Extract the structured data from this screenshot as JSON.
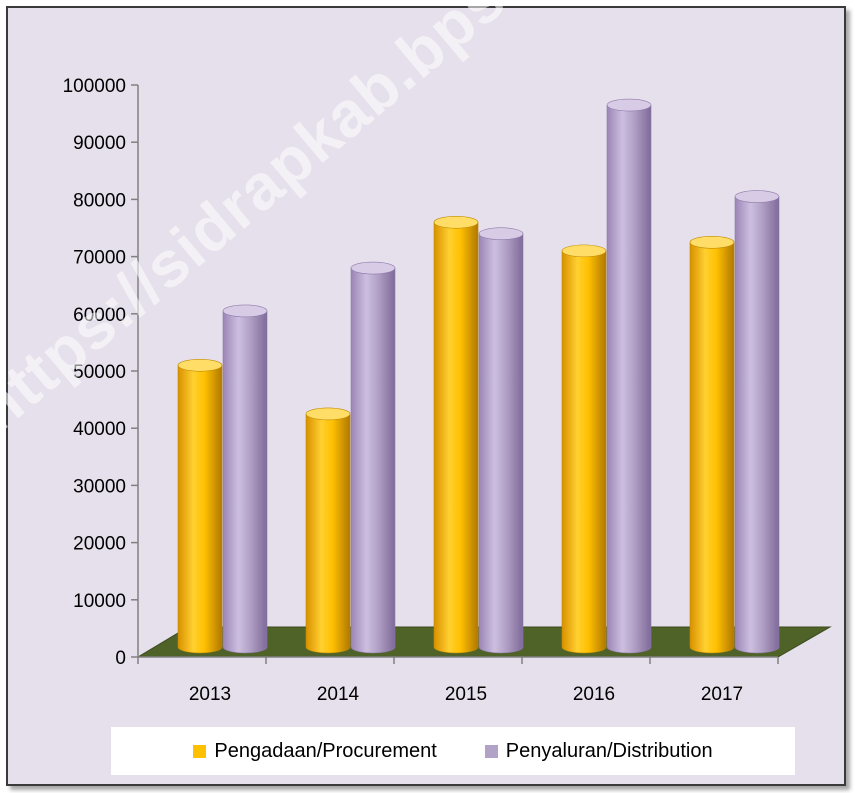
{
  "chart_data": {
    "type": "bar",
    "categories": [
      "2013",
      "2014",
      "2015",
      "2016",
      "2017"
    ],
    "series": [
      {
        "name": "Pengadaan/Procurement",
        "values": [
          51000,
          42500,
          76000,
          71000,
          72500
        ],
        "color": "#ffc000"
      },
      {
        "name": "Penyaluran/Distribution",
        "values": [
          60500,
          68000,
          74000,
          96500,
          80500
        ],
        "color": "#b3a2c7"
      }
    ],
    "ylim": [
      0,
      100000
    ],
    "yticks": [
      "0",
      "10000",
      "20000",
      "30000",
      "40000",
      "50000",
      "60000",
      "70000",
      "80000",
      "90000",
      "100000"
    ],
    "grid": false,
    "legend_position": "bottom",
    "bar_shape": "cylinder",
    "floor_color": "#4f6228",
    "background_color": "#e6e0ec"
  },
  "watermark": "https://sidrapkab.bps.go.id"
}
